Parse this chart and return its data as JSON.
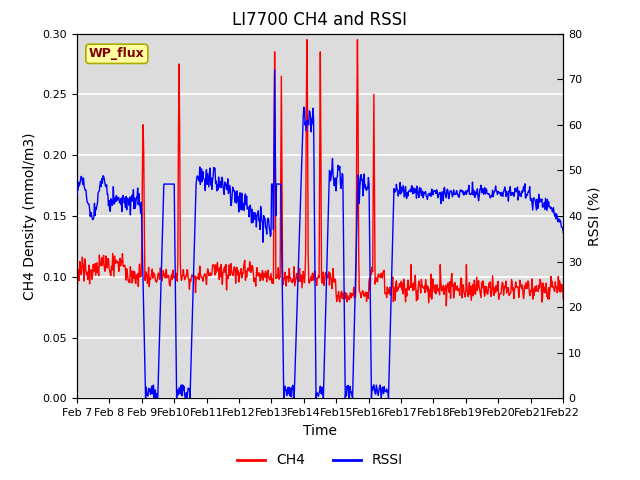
{
  "title": "LI7700 CH4 and RSSI",
  "ylabel_left": "CH4 Density (mmol/m3)",
  "ylabel_right": "RSSI (%)",
  "xlabel": "Time",
  "ylim_left": [
    0,
    0.3
  ],
  "ylim_right": [
    0,
    80
  ],
  "yticks_left": [
    0.0,
    0.05,
    0.1,
    0.15,
    0.2,
    0.25,
    0.3
  ],
  "yticks_right": [
    0,
    10,
    20,
    30,
    40,
    50,
    60,
    70,
    80
  ],
  "xtick_labels": [
    "Feb 7",
    "Feb 8",
    "Feb 9",
    "Feb 10",
    "Feb 11",
    "Feb 12",
    "Feb 13",
    "Feb 14",
    "Feb 15",
    "Feb 16",
    "Feb 17",
    "Feb 18",
    "Feb 19",
    "Feb 20",
    "Feb 21",
    "Feb 22"
  ],
  "ch4_color": "#FF0000",
  "rssi_color": "#0000FF",
  "bg_color": "#DCDCDC",
  "fig_bg_color": "#FFFFFF",
  "wp_flux_bg": "#FFFFA0",
  "wp_flux_text": "#800000",
  "wp_flux_border": "#AAAA00",
  "wp_flux_label": "WP_flux",
  "legend_ch4": "CH4",
  "legend_rssi": "RSSI",
  "title_fontsize": 12,
  "axis_fontsize": 10,
  "tick_fontsize": 8,
  "legend_fontsize": 10,
  "linewidth": 1.0
}
